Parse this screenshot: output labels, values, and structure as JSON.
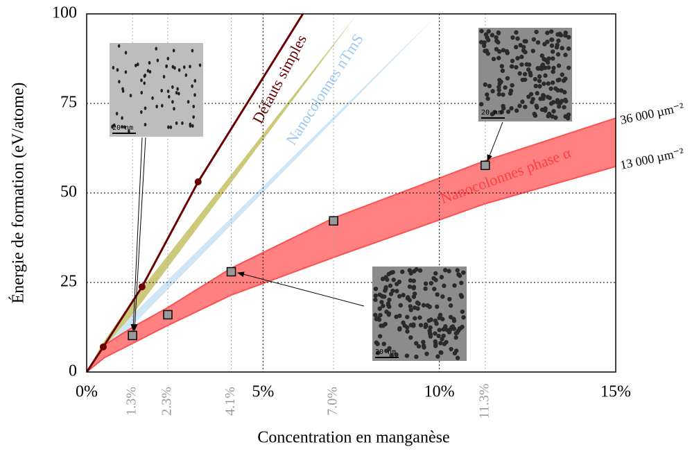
{
  "chart_data": {
    "type": "line",
    "x_label": "Concentration en manganèse",
    "y_label": "Énergie de formation (eV/atome)",
    "xlim": [
      0,
      15
    ],
    "ylim": [
      0,
      100
    ],
    "xticks": [
      {
        "value": 0,
        "label": "0%"
      },
      {
        "value": 5,
        "label": "5%"
      },
      {
        "value": 10,
        "label": "10%"
      },
      {
        "value": 15,
        "label": "15%"
      }
    ],
    "xticks_minor": [
      {
        "value": 1.3,
        "label": "1.3%"
      },
      {
        "value": 2.3,
        "label": "2.3%"
      },
      {
        "value": 4.1,
        "label": "4.1%"
      },
      {
        "value": 7.0,
        "label": "7.0%"
      },
      {
        "value": 11.3,
        "label": "11.3%"
      }
    ],
    "yticks": [
      0,
      25,
      50,
      75,
      100
    ],
    "grid": true,
    "bands": [
      {
        "name": "Nanocolonnes nTmS",
        "color": "#cfe6f7",
        "x": [
          0,
          0.45,
          1.3,
          9.97
        ],
        "lower": [
          0,
          6.5,
          13,
          100
        ],
        "upper": [
          0,
          6.5,
          16,
          100
        ]
      },
      {
        "name": "Défauts simples",
        "color": "#cdc97a",
        "x": [
          0,
          0.45,
          1.3,
          7.67
        ],
        "lower": [
          0,
          6.5,
          16,
          100
        ],
        "upper": [
          0,
          8,
          20,
          100
        ]
      },
      {
        "name": "Nanocolonnes phase α",
        "color": "#ff8080",
        "x": [
          0,
          0.5,
          1.3,
          2.3,
          4.1,
          7.0,
          11.3,
          15
        ],
        "lower": [
          0,
          4,
          8,
          13,
          21.5,
          32,
          47,
          57.4
        ],
        "upper": [
          0,
          7.5,
          12.5,
          18,
          29,
          43,
          59,
          70.9
        ]
      }
    ],
    "series": [
      {
        "name": "Défauts simples",
        "color": "#6b0000",
        "x": [
          0,
          0.47,
          1.57,
          3.16,
          6.13
        ],
        "values": [
          0,
          7,
          23.8,
          53.1,
          100
        ],
        "markers": [
          false,
          true,
          true,
          true,
          false
        ]
      },
      {
        "name": "Nanocolonnes phase α",
        "color": "#999999",
        "x": [
          1.3,
          2.3,
          4.1,
          7.0,
          11.3
        ],
        "values": [
          10.2,
          16,
          28,
          42.2,
          57.7
        ]
      }
    ],
    "annotations": [
      "36 000 µm⁻²",
      "13 000 µm⁻²"
    ],
    "insets": [
      {
        "scale_label": "20 nm"
      },
      {
        "scale_label": "20 nm"
      },
      {
        "scale_label": "20 nm"
      }
    ]
  }
}
